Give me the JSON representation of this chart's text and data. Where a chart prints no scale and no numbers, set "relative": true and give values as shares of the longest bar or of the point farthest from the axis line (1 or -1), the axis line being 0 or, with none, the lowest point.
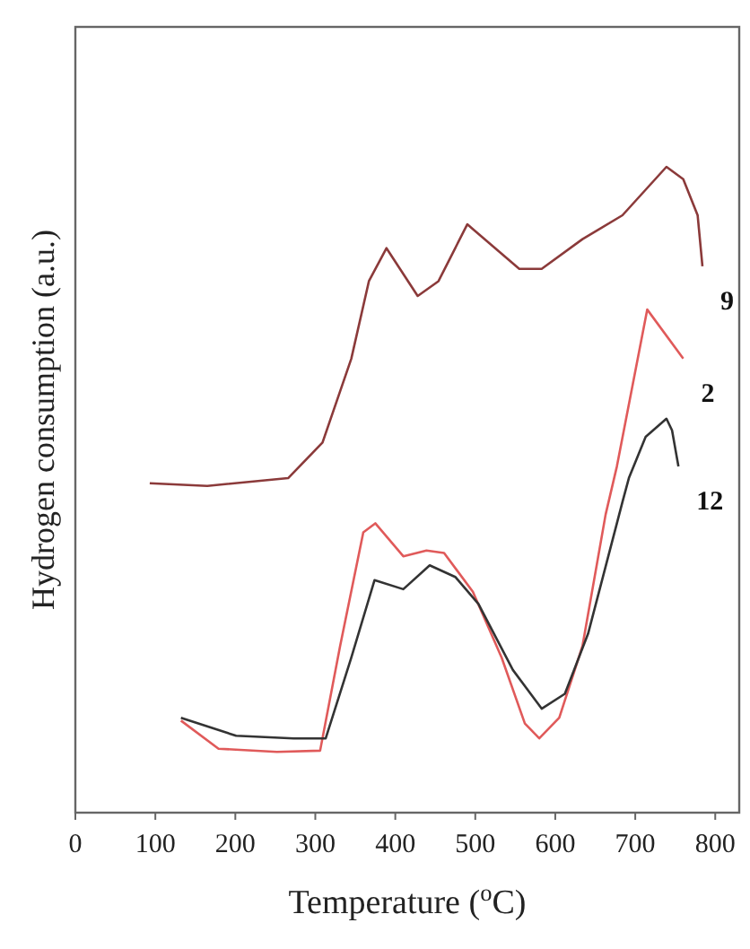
{
  "chart_data": {
    "type": "line",
    "relative": true,
    "xlabel": "Temperature ($^{o}$C)",
    "ylabel": "Hydrogen consumption (a.u.)",
    "xlim": [
      0,
      830
    ],
    "xticks": [
      0,
      100,
      200,
      300,
      400,
      500,
      600,
      700,
      800
    ],
    "legend": false,
    "grid": false,
    "marker": "none",
    "line_style": "solid",
    "series": [
      {
        "name": "9",
        "color": "#8b3a3a",
        "x": [
          93,
          165,
          266,
          309,
          345,
          367,
          389,
          428,
          454,
          490,
          555,
          583,
          634,
          684,
          739,
          760,
          778,
          784
        ],
        "values": [
          0.51,
          0.506,
          0.518,
          0.573,
          0.703,
          0.823,
          0.874,
          0.8,
          0.823,
          0.911,
          0.842,
          0.842,
          0.888,
          0.925,
          1.0,
          0.981,
          0.925,
          0.846
        ]
      },
      {
        "name": "2",
        "color": "#e05a5a",
        "x": [
          132,
          179,
          252,
          306,
          331,
          360,
          375,
          410,
          439,
          461,
          497,
          533,
          562,
          580,
          605,
          634,
          663,
          677,
          715,
          760
        ],
        "values": [
          0.1425,
          0.099,
          0.094,
          0.096,
          0.258,
          0.434,
          0.448,
          0.397,
          0.406,
          0.402,
          0.342,
          0.24,
          0.138,
          0.115,
          0.147,
          0.258,
          0.462,
          0.536,
          0.779,
          0.703
        ]
      },
      {
        "name": "12",
        "color": "#333333",
        "x": [
          132,
          201,
          273,
          313,
          345,
          374,
          410,
          443,
          475,
          504,
          547,
          583,
          612,
          641,
          684,
          692,
          713,
          739,
          746,
          754
        ],
        "values": [
          0.147,
          0.119,
          0.115,
          0.115,
          0.24,
          0.36,
          0.346,
          0.383,
          0.365,
          0.323,
          0.221,
          0.161,
          0.184,
          0.277,
          0.481,
          0.518,
          0.582,
          0.61,
          0.592,
          0.536
        ]
      }
    ]
  }
}
